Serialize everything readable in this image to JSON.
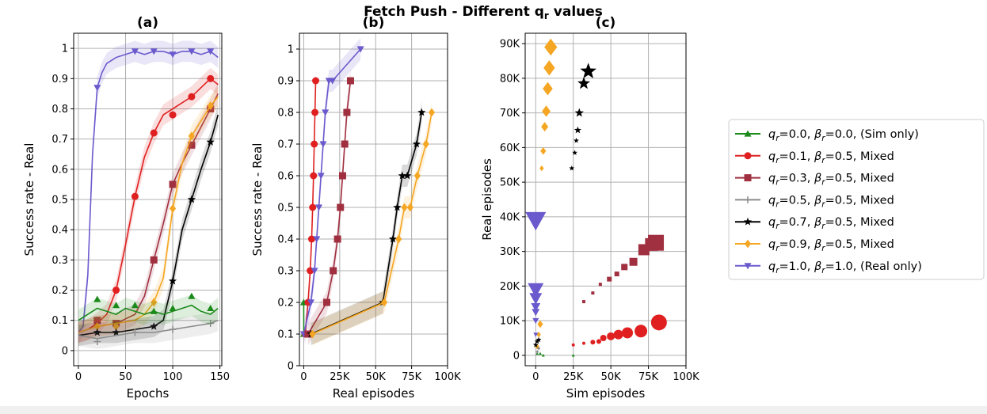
{
  "suptitle": "Fetch Push - Different q",
  "suptitle_sub": "r",
  "suptitle_tail": " values",
  "legend": [
    {
      "key": "s00",
      "q": "0.0",
      "b": "0.0",
      "suffix": "(Sim only)",
      "color": "#1a8a1a",
      "marker": "triangle-up"
    },
    {
      "key": "s01",
      "q": "0.1",
      "b": "0.5",
      "suffix": "Mixed",
      "color": "#e02020",
      "marker": "circle"
    },
    {
      "key": "s03",
      "q": "0.3",
      "b": "0.5",
      "suffix": "Mixed",
      "color": "#a03040",
      "marker": "square"
    },
    {
      "key": "s05",
      "q": "0.5",
      "b": "0.5",
      "suffix": "Mixed",
      "color": "#8c8c8c",
      "marker": "plus"
    },
    {
      "key": "s07",
      "q": "0.7",
      "b": "0.5",
      "suffix": "Mixed",
      "color": "#000000",
      "marker": "star"
    },
    {
      "key": "s09",
      "q": "0.9",
      "b": "0.5",
      "suffix": "Mixed",
      "color": "#f5a623",
      "marker": "diamond"
    },
    {
      "key": "s10",
      "q": "1.0",
      "b": "1.0",
      "suffix": "(Real only)",
      "color": "#6a5acd",
      "marker": "triangle-down"
    }
  ],
  "chart_data": [
    {
      "panel": "a",
      "title": "(a)",
      "type": "line",
      "xlabel": "Epochs",
      "ylabel": "Success rate - Real",
      "xlim": [
        -5,
        152
      ],
      "ylim": [
        -0.05,
        1.05
      ],
      "xticks": [
        0,
        50,
        100,
        150
      ],
      "xtick_labels": [
        "0",
        "50",
        "100",
        "150"
      ],
      "yticks": [
        0,
        0.1,
        0.2,
        0.3,
        0.4,
        0.5,
        0.6,
        0.7,
        0.8,
        0.9,
        1
      ],
      "ytick_labels": [
        "0",
        "0.1",
        "0.2",
        "0.3",
        "0.4",
        "0.5",
        "0.6",
        "0.7",
        "0.8",
        "0.9",
        "1"
      ],
      "grid": true,
      "series": [
        {
          "key": "s10",
          "x": [
            0,
            5,
            10,
            15,
            20,
            25,
            30,
            40,
            50,
            60,
            70,
            80,
            90,
            100,
            110,
            120,
            130,
            140,
            148
          ],
          "y": [
            0.06,
            0.08,
            0.25,
            0.65,
            0.87,
            0.92,
            0.95,
            0.97,
            0.98,
            0.99,
            0.98,
            0.99,
            0.99,
            0.98,
            0.99,
            0.99,
            0.98,
            0.99,
            0.97
          ],
          "marker_x": [
            20,
            60,
            80,
            100,
            120,
            140
          ],
          "marker_y": [
            0.87,
            0.99,
            0.99,
            0.98,
            0.99,
            0.99
          ]
        },
        {
          "key": "s01",
          "x": [
            0,
            10,
            20,
            30,
            40,
            50,
            60,
            70,
            80,
            90,
            100,
            110,
            120,
            130,
            140,
            148
          ],
          "y": [
            0.06,
            0.07,
            0.09,
            0.12,
            0.2,
            0.35,
            0.51,
            0.64,
            0.72,
            0.78,
            0.8,
            0.82,
            0.84,
            0.87,
            0.9,
            0.88
          ],
          "marker_x": [
            40,
            60,
            80,
            100,
            120,
            140
          ],
          "marker_y": [
            0.2,
            0.51,
            0.72,
            0.78,
            0.84,
            0.9
          ]
        },
        {
          "key": "s03",
          "x": [
            0,
            20,
            40,
            60,
            70,
            80,
            90,
            100,
            110,
            120,
            130,
            140,
            148
          ],
          "y": [
            0.06,
            0.08,
            0.09,
            0.12,
            0.18,
            0.3,
            0.42,
            0.55,
            0.62,
            0.68,
            0.74,
            0.8,
            0.85
          ],
          "marker_x": [
            20,
            40,
            80,
            100,
            120,
            140
          ],
          "marker_y": [
            0.1,
            0.09,
            0.3,
            0.55,
            0.68,
            0.8
          ]
        },
        {
          "key": "s09",
          "x": [
            0,
            20,
            40,
            60,
            70,
            80,
            90,
            100,
            110,
            120,
            130,
            140,
            148
          ],
          "y": [
            0.06,
            0.08,
            0.09,
            0.1,
            0.12,
            0.16,
            0.24,
            0.47,
            0.62,
            0.71,
            0.76,
            0.81,
            0.84
          ],
          "marker_x": [
            20,
            40,
            80,
            100,
            120,
            140
          ],
          "marker_y": [
            0.08,
            0.08,
            0.16,
            0.47,
            0.71,
            0.81
          ]
        },
        {
          "key": "s07",
          "x": [
            0,
            20,
            40,
            60,
            80,
            90,
            100,
            110,
            120,
            130,
            140,
            148
          ],
          "y": [
            0.05,
            0.06,
            0.06,
            0.07,
            0.08,
            0.1,
            0.23,
            0.4,
            0.5,
            0.6,
            0.69,
            0.78
          ],
          "marker_x": [
            20,
            40,
            80,
            100,
            120,
            140
          ],
          "marker_y": [
            0.06,
            0.06,
            0.08,
            0.23,
            0.5,
            0.69
          ]
        },
        {
          "key": "s05",
          "x": [
            0,
            20,
            40,
            60,
            80,
            100,
            120,
            140,
            148
          ],
          "y": [
            0.05,
            0.04,
            0.05,
            0.06,
            0.06,
            0.07,
            0.08,
            0.09,
            0.1
          ],
          "marker_x": [
            20,
            60,
            100,
            140
          ],
          "marker_y": [
            0.03,
            0.06,
            0.07,
            0.09
          ]
        },
        {
          "key": "s00",
          "x": [
            0,
            10,
            20,
            30,
            40,
            50,
            60,
            70,
            80,
            90,
            100,
            110,
            120,
            130,
            140,
            148
          ],
          "y": [
            0.1,
            0.12,
            0.14,
            0.13,
            0.12,
            0.14,
            0.13,
            0.12,
            0.13,
            0.12,
            0.13,
            0.14,
            0.15,
            0.13,
            0.12,
            0.14
          ],
          "marker_x": [
            20,
            40,
            60,
            80,
            100,
            120,
            140
          ],
          "marker_y": [
            0.17,
            0.15,
            0.15,
            0.13,
            0.14,
            0.18,
            0.14
          ]
        }
      ]
    },
    {
      "panel": "b",
      "title": "(b)",
      "type": "line",
      "xlabel": "Real episodes",
      "ylabel": "Success rate - Real",
      "xlim": [
        -3000,
        100000
      ],
      "ylim": [
        0,
        1.05
      ],
      "xticks": [
        0,
        25000,
        50000,
        75000,
        100000
      ],
      "xtick_labels": [
        "0",
        "25K",
        "50K",
        "75K",
        "100K"
      ],
      "yticks": [
        0,
        0.1,
        0.2,
        0.3,
        0.4,
        0.5,
        0.6,
        0.7,
        0.8,
        0.9,
        1
      ],
      "ytick_labels": [
        "0",
        "0.1",
        "0.2",
        "0.3",
        "0.4",
        "0.5",
        "0.6",
        "0.7",
        "0.8",
        "0.9",
        "1"
      ],
      "grid": true,
      "series": [
        {
          "key": "s00",
          "x": [
            0,
            0
          ],
          "y": [
            0.1,
            0.2
          ]
        },
        {
          "key": "s01",
          "x": [
            1000,
            3000,
            4500,
            5500,
            6200,
            6800,
            7300,
            7800,
            8300
          ],
          "y": [
            0.1,
            0.2,
            0.3,
            0.4,
            0.5,
            0.6,
            0.7,
            0.8,
            0.9
          ]
        },
        {
          "key": "s10",
          "x": [
            0,
            5000,
            7500,
            9000,
            10500,
            12000,
            13500,
            15000,
            17500,
            20000,
            39500
          ],
          "y": [
            0.1,
            0.2,
            0.3,
            0.4,
            0.5,
            0.6,
            0.7,
            0.8,
            0.9,
            0.9,
            1.0
          ]
        },
        {
          "key": "s03",
          "x": [
            3000,
            16000,
            20500,
            23500,
            25500,
            27000,
            28500,
            30000,
            32500
          ],
          "y": [
            0.1,
            0.2,
            0.3,
            0.4,
            0.5,
            0.6,
            0.7,
            0.8,
            0.9
          ]
        },
        {
          "key": "s07",
          "x": [
            5000,
            55000,
            62000,
            65000,
            68500,
            72000,
            78500,
            82000
          ],
          "y": [
            0.1,
            0.2,
            0.4,
            0.5,
            0.6,
            0.6,
            0.7,
            0.8
          ]
        },
        {
          "key": "s09",
          "x": [
            6000,
            56000,
            66000,
            70000,
            74000,
            79000,
            85000,
            89000
          ],
          "y": [
            0.1,
            0.2,
            0.4,
            0.5,
            0.5,
            0.6,
            0.7,
            0.8
          ]
        }
      ]
    },
    {
      "panel": "c",
      "title": "(c)",
      "type": "scatter",
      "xlabel": "Sim episodes",
      "ylabel": "Real episodes",
      "xlim": [
        -7000,
        100000
      ],
      "ylim": [
        -3000,
        93000
      ],
      "xticks": [
        0,
        25000,
        50000,
        75000,
        100000
      ],
      "xtick_labels": [
        "0",
        "25K",
        "50K",
        "75K",
        "100K"
      ],
      "yticks": [
        0,
        10000,
        20000,
        30000,
        40000,
        50000,
        60000,
        70000,
        80000,
        90000
      ],
      "ytick_labels": [
        "0",
        "10K",
        "20K",
        "30K",
        "40K",
        "50K",
        "60K",
        "70K",
        "80K",
        "90K"
      ],
      "grid": true,
      "series": [
        {
          "key": "s09",
          "x": [
            1000,
            2000,
            3000,
            4000,
            5000,
            6000,
            7000,
            8000,
            9000,
            10000
          ],
          "y": [
            2500,
            6000,
            9000,
            54000,
            59000,
            66000,
            70500,
            77000,
            83000,
            89000
          ],
          "size": [
            3,
            3,
            4,
            3,
            4,
            5,
            6,
            7,
            8,
            9
          ]
        },
        {
          "key": "s07",
          "x": [
            0,
            1000,
            2000,
            24000,
            26000,
            27000,
            28000,
            29000,
            32000,
            35000
          ],
          "y": [
            3000,
            4000,
            4500,
            54000,
            58500,
            62000,
            65000,
            70000,
            78500,
            82000
          ],
          "size": [
            3,
            3,
            3,
            3,
            3,
            3,
            4,
            5,
            7,
            9
          ]
        },
        {
          "key": "s03",
          "x": [
            32000,
            38000,
            43000,
            49000,
            54000,
            59000,
            65000,
            72000,
            77000,
            80000
          ],
          "y": [
            15500,
            18000,
            20500,
            22000,
            23500,
            25500,
            27000,
            30500,
            32000,
            32500
          ],
          "size": [
            2,
            2,
            2,
            3,
            3,
            4,
            5,
            7,
            8,
            10
          ]
        },
        {
          "key": "s01",
          "x": [
            25000,
            32000,
            38000,
            42000,
            45000,
            50000,
            55000,
            61000,
            70000,
            82000
          ],
          "y": [
            3000,
            3500,
            3800,
            4000,
            5000,
            5500,
            6000,
            6500,
            7000,
            9500
          ],
          "size": [
            2,
            2,
            3,
            3,
            4,
            5,
            6,
            7,
            8,
            10
          ]
        },
        {
          "key": "s10",
          "x": [
            0,
            0,
            0,
            0,
            0,
            0,
            0
          ],
          "y": [
            6000,
            10000,
            12500,
            14000,
            16500,
            19000,
            39000
          ],
          "size": [
            3,
            4,
            5,
            6,
            8,
            10,
            13
          ]
        },
        {
          "key": "s00",
          "x": [
            1000,
            3000,
            5000,
            25000
          ],
          "y": [
            500,
            500,
            0,
            0
          ],
          "size": [
            2,
            2,
            2,
            2
          ]
        },
        {
          "key": "s05",
          "x": [
            1000,
            2000
          ],
          "y": [
            1000,
            2000
          ],
          "size": [
            2,
            2
          ]
        }
      ]
    }
  ]
}
